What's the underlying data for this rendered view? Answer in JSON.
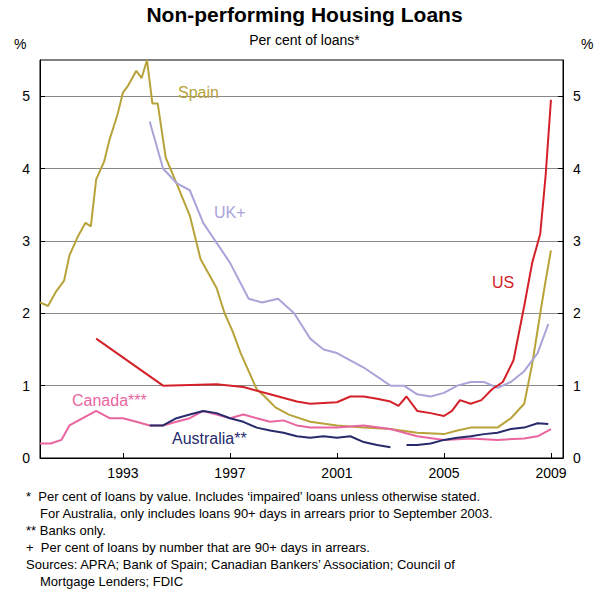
{
  "chart_data": {
    "type": "line",
    "title": "Non-performing Housing Loans",
    "subtitle": "Per cent of loans*",
    "y_label": "%",
    "y2_label": "%",
    "xlim": [
      1989.9,
      2009.45
    ],
    "xticks": [
      1993,
      1997,
      2001,
      2005,
      2009
    ],
    "ylim": [
      0,
      5.5
    ],
    "yticks": [
      0,
      1,
      2,
      3,
      4,
      5
    ],
    "y2lim": [
      0,
      5.5
    ],
    "y2ticks": [
      0,
      1,
      2,
      3,
      4,
      5
    ],
    "grid": true,
    "series": [
      {
        "name": "Spain",
        "color": "#b8a33a",
        "x": [
          1989.9,
          1990.2,
          1990.5,
          1990.8,
          1991.0,
          1991.3,
          1991.6,
          1991.8,
          1992.0,
          1992.3,
          1992.5,
          1992.8,
          1993.0,
          1993.2,
          1993.5,
          1993.7,
          1993.9,
          1994.1,
          1994.3,
          1994.6,
          1995.0,
          1995.5,
          1995.9,
          1996.5,
          1996.8,
          1997.1,
          1997.4,
          1997.7,
          1998.0,
          1998.3,
          1998.7,
          1999.2,
          2000.0,
          2001.0,
          2002.0,
          2003.0,
          2004.0,
          2005.0,
          2005.5,
          2006.0,
          2007.0,
          2007.5,
          2008.0,
          2008.3,
          2008.6,
          2008.8,
          2009.0
        ],
        "values": [
          2.15,
          2.1,
          2.3,
          2.45,
          2.8,
          3.05,
          3.25,
          3.2,
          3.85,
          4.1,
          4.4,
          4.75,
          5.05,
          5.15,
          5.35,
          5.25,
          5.5,
          4.9,
          4.9,
          4.15,
          3.8,
          3.35,
          2.75,
          2.35,
          2.0,
          1.75,
          1.45,
          1.2,
          0.95,
          0.85,
          0.7,
          0.6,
          0.5,
          0.45,
          0.42,
          0.4,
          0.35,
          0.33,
          0.38,
          0.42,
          0.42,
          0.55,
          0.75,
          1.3,
          2.0,
          2.45,
          2.87
        ]
      },
      {
        "name": "UK+",
        "color": "#aaa4d8",
        "x": [
          1994.0,
          1994.5,
          1995.0,
          1995.5,
          1996.0,
          1997.0,
          1997.7,
          1998.2,
          1998.8,
          1999.4,
          2000.0,
          2000.5,
          2001.0,
          2002.0,
          2003.0,
          2003.5,
          2004.0,
          2004.5,
          2005.0,
          2005.5,
          2006.0,
          2006.5,
          2007.0,
          2007.5,
          2008.0,
          2008.5,
          2008.9
        ],
        "values": [
          4.65,
          4.0,
          3.8,
          3.7,
          3.25,
          2.7,
          2.2,
          2.15,
          2.2,
          2.0,
          1.65,
          1.5,
          1.45,
          1.25,
          1.0,
          1.0,
          0.88,
          0.85,
          0.9,
          1.0,
          1.05,
          1.05,
          0.97,
          1.05,
          1.2,
          1.45,
          1.85
        ]
      },
      {
        "name": "US",
        "color": "#d42129",
        "x": [
          1992.0,
          1994.5,
          1996.5,
          1997.5,
          1998.5,
          1999.5,
          2000.0,
          2001.0,
          2001.5,
          2002.0,
          2002.5,
          2003.0,
          2003.3,
          2003.6,
          2004.0,
          2004.5,
          2005.0,
          2005.3,
          2005.6,
          2006.0,
          2006.4,
          2006.8,
          2007.2,
          2007.6,
          2008.0,
          2008.3,
          2008.6,
          2008.8,
          2009.0
        ],
        "values": [
          1.65,
          1.0,
          1.02,
          0.98,
          0.88,
          0.78,
          0.75,
          0.77,
          0.85,
          0.85,
          0.82,
          0.78,
          0.72,
          0.85,
          0.65,
          0.62,
          0.58,
          0.65,
          0.8,
          0.75,
          0.8,
          0.95,
          1.05,
          1.35,
          2.1,
          2.7,
          3.1,
          3.9,
          4.95
        ]
      },
      {
        "name": "Canada***",
        "color": "#e8659f",
        "x": [
          1989.9,
          1990.3,
          1990.7,
          1991.0,
          1991.5,
          1992.0,
          1992.5,
          1993.0,
          1993.5,
          1994.0,
          1994.5,
          1995.0,
          1995.5,
          1996.0,
          1996.5,
          1997.0,
          1997.5,
          1998.0,
          1998.5,
          1999.0,
          1999.5,
          2000.0,
          2001.0,
          2002.0,
          2003.0,
          2004.0,
          2005.0,
          2006.0,
          2007.0,
          2008.0,
          2008.5,
          2009.0
        ],
        "values": [
          0.2,
          0.2,
          0.25,
          0.45,
          0.55,
          0.65,
          0.55,
          0.55,
          0.5,
          0.45,
          0.45,
          0.5,
          0.55,
          0.65,
          0.6,
          0.55,
          0.6,
          0.55,
          0.5,
          0.52,
          0.45,
          0.42,
          0.42,
          0.45,
          0.4,
          0.3,
          0.25,
          0.27,
          0.25,
          0.27,
          0.3,
          0.4
        ]
      },
      {
        "name": "Australia**",
        "color": "#272b6b",
        "x": [
          1994.0,
          1994.5,
          1995.0,
          1995.5,
          1996.0,
          1996.5,
          1997.0,
          1997.5,
          1998.0,
          1998.5,
          1999.0,
          1999.5,
          2000.0,
          2000.5,
          2001.0,
          2001.5,
          2002.0,
          2002.5,
          2003.0,
          2003.3,
          2003.6,
          2004.0,
          2004.5,
          2005.0,
          2005.5,
          2006.0,
          2006.5,
          2007.0,
          2007.5,
          2008.0,
          2008.5,
          2008.9
        ],
        "values": [
          0.45,
          0.45,
          0.55,
          0.6,
          0.65,
          0.62,
          0.55,
          0.5,
          0.42,
          0.38,
          0.35,
          0.3,
          0.28,
          0.3,
          0.28,
          0.3,
          0.22,
          0.18,
          0.15,
          null,
          0.18,
          0.18,
          0.2,
          0.25,
          0.28,
          0.3,
          0.33,
          0.35,
          0.4,
          0.42,
          0.48,
          0.47
        ]
      }
    ],
    "notes": [
      "*  Per cent of loans by value. Includes ‘impaired’ loans unless otherwise stated.",
      "For Australia, only includes loans 90+ days in arrears prior to September 2003.",
      "** Banks only.",
      "+  Per cent of loans by number that are 90+ days in arrears.",
      "Sources: APRA; Bank of Spain; Canadian Bankers’ Association; Council of",
      "Mortgage Lenders; FDIC"
    ]
  }
}
